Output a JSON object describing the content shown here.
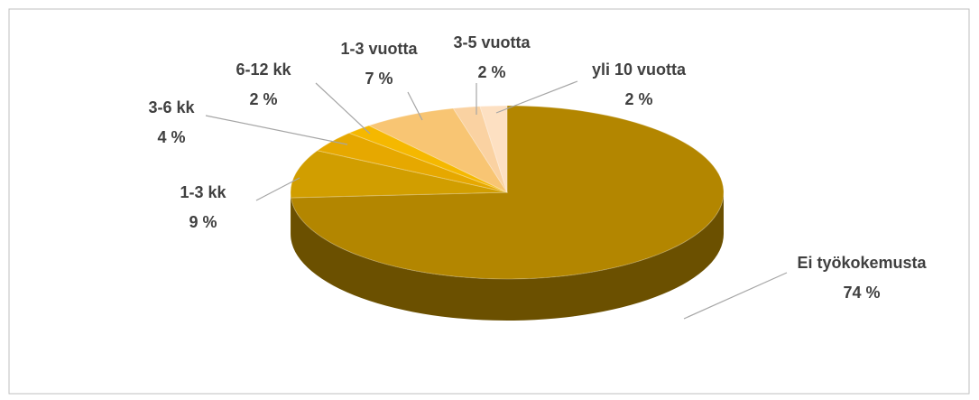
{
  "chart_data": {
    "type": "pie",
    "categories": [
      "Ei työkokemusta",
      "1-3 kk",
      "3-6 kk",
      "6-12 kk",
      "1-3 vuotta",
      "3-5 vuotta",
      "yli 10 vuotta"
    ],
    "values": [
      74,
      9,
      4,
      2,
      7,
      2,
      2
    ],
    "value_labels": [
      "74 %",
      "9 %",
      "4 %",
      "2 %",
      "7 %",
      "2 %",
      "2 %"
    ],
    "colors": [
      "#b38600",
      "#d19e00",
      "#e6a800",
      "#f5b800",
      "#f8c573",
      "#fad2a2",
      "#fde0c2"
    ]
  }
}
